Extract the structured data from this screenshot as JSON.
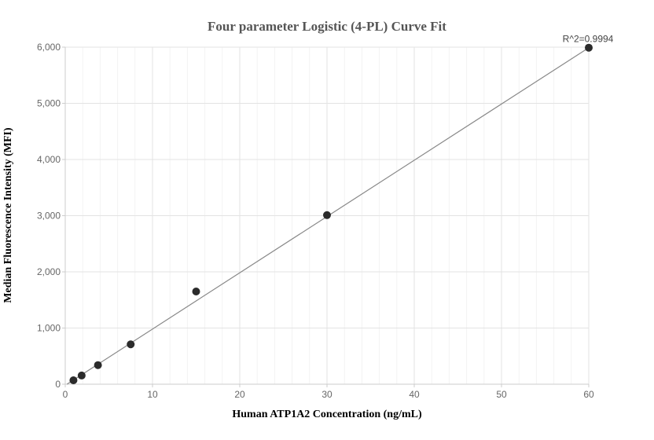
{
  "chart_data": {
    "type": "scatter",
    "title": "Four parameter Logistic (4-PL) Curve Fit",
    "xlabel": "Human ATP1A2 Concentration (ng/mL)",
    "ylabel": "Median Fluorescence Intensity (MFI)",
    "xlim": [
      0,
      60
    ],
    "ylim": [
      0,
      6000
    ],
    "x_ticks": [
      0,
      10,
      20,
      30,
      40,
      50,
      60
    ],
    "x_tick_labels": [
      "0",
      "10",
      "20",
      "30",
      "40",
      "50",
      "60"
    ],
    "y_ticks": [
      0,
      1000,
      2000,
      3000,
      4000,
      5000,
      6000
    ],
    "y_tick_labels": [
      "0",
      "1,000",
      "2,000",
      "3,000",
      "4,000",
      "5,000",
      "6,000"
    ],
    "grid": true,
    "annotation": "R^2=0.9994",
    "series": [
      {
        "type": "scatter",
        "color": "#2b2b2b",
        "points": [
          {
            "x": 0.94,
            "y": 70
          },
          {
            "x": 1.88,
            "y": 155
          },
          {
            "x": 3.75,
            "y": 340
          },
          {
            "x": 7.5,
            "y": 710
          },
          {
            "x": 15,
            "y": 1650
          },
          {
            "x": 30,
            "y": 3010
          },
          {
            "x": 60,
            "y": 5990
          }
        ]
      },
      {
        "type": "line",
        "color": "#888888",
        "points": [
          {
            "x": 0,
            "y": -20
          },
          {
            "x": 60,
            "y": 5990
          }
        ]
      }
    ]
  }
}
